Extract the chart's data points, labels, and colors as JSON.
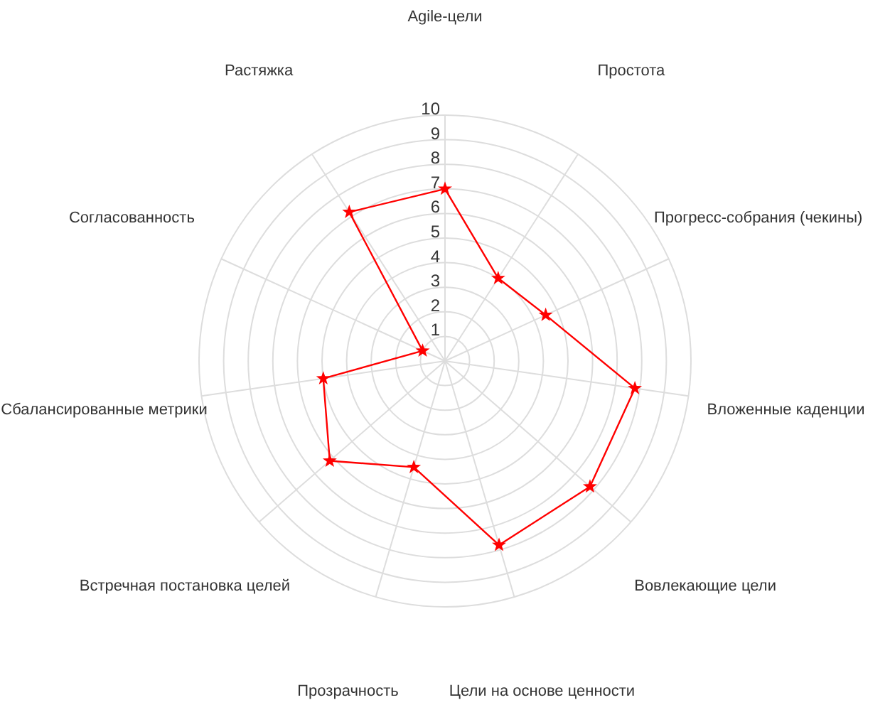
{
  "chart_data": {
    "type": "radar",
    "categories": [
      "Agile-цели",
      "Простота",
      "Прогресс-собрания (чекины)",
      "Вложенные каденции",
      "Вовлекающие цели",
      "Цели на основе ценности",
      "Прозрачность",
      "Встречная постановка целей",
      "Сбалансированные метрики",
      "Согласованность",
      "Растяжка"
    ],
    "series": [
      {
        "color": "#ff0000",
        "values": [
          7,
          4,
          4.5,
          7.8,
          7.8,
          7.8,
          4.5,
          6.2,
          5,
          1,
          7.2
        ]
      }
    ],
    "ylim": [
      0,
      10
    ],
    "yticks": [
      1,
      2,
      3,
      4,
      5,
      6,
      7,
      8,
      9,
      10
    ],
    "grid": true,
    "marker": "star"
  }
}
